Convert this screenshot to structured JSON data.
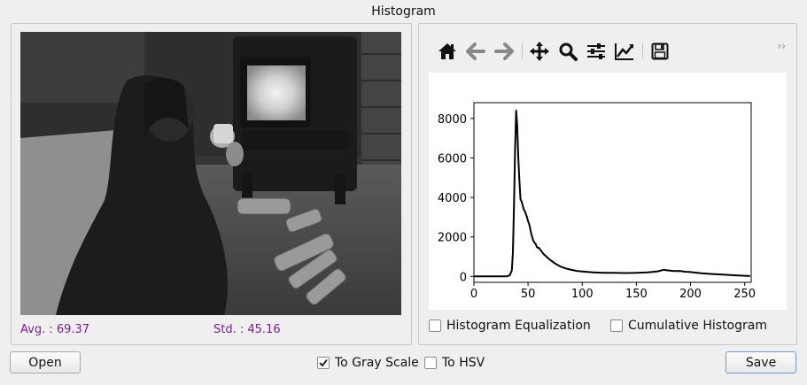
{
  "window": {
    "title": "Histogram"
  },
  "image_panel": {
    "avg_label": "Avg. : 69.37",
    "std_label": "Std. : 45.16"
  },
  "toolbar": {
    "icons": [
      "home-icon",
      "back-arrow-icon",
      "forward-arrow-icon",
      "pan-icon",
      "zoom-icon",
      "configure-subplots-icon",
      "edit-axis-icon",
      "save-figure-icon"
    ],
    "overflow_label": "››"
  },
  "options": {
    "equalization_label": "Histogram Equalization",
    "equalization_checked": false,
    "cumulative_label": "Cumulative Histogram",
    "cumulative_checked": false
  },
  "bottom": {
    "open_label": "Open",
    "gray_label": "To Gray Scale",
    "gray_checked": true,
    "hsv_label": "To HSV",
    "hsv_checked": false,
    "save_label": "Save"
  },
  "chart_data": {
    "type": "line",
    "title": "",
    "xlabel": "",
    "ylabel": "",
    "xlim": [
      0,
      256
    ],
    "ylim": [
      -300,
      8800
    ],
    "xticks": [
      0,
      50,
      100,
      150,
      200,
      250
    ],
    "yticks": [
      0,
      2000,
      4000,
      6000,
      8000
    ],
    "grid": false,
    "series": [
      {
        "color": "#000000",
        "x": [
          0,
          30,
          33,
          35,
          36,
          37,
          38,
          39,
          40,
          41,
          42,
          43,
          44,
          45,
          46,
          47,
          48,
          49,
          50,
          51,
          52,
          53,
          54,
          55,
          56,
          57,
          58,
          59,
          60,
          62,
          64,
          66,
          68,
          70,
          75,
          80,
          85,
          90,
          95,
          100,
          110,
          120,
          130,
          140,
          150,
          160,
          165,
          170,
          175,
          180,
          185,
          190,
          195,
          200,
          210,
          220,
          230,
          240,
          250,
          255
        ],
        "y": [
          0,
          0,
          50,
          300,
          1200,
          3500,
          6500,
          8400,
          7600,
          6000,
          4800,
          3900,
          3800,
          3600,
          3400,
          3300,
          3150,
          3000,
          2800,
          2650,
          2400,
          2150,
          1950,
          1800,
          1700,
          1650,
          1500,
          1450,
          1450,
          1300,
          1150,
          1050,
          950,
          850,
          650,
          500,
          400,
          330,
          280,
          250,
          200,
          180,
          180,
          170,
          180,
          200,
          230,
          260,
          330,
          300,
          270,
          280,
          240,
          220,
          160,
          120,
          90,
          60,
          30,
          20
        ]
      }
    ]
  }
}
